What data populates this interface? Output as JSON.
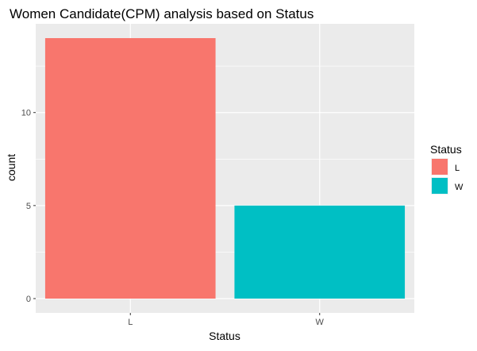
{
  "chart_data": {
    "type": "bar",
    "title": "Women Candidate(CPM) analysis based on Status",
    "xlabel": "Status",
    "ylabel": "count",
    "categories": [
      "L",
      "W"
    ],
    "values": [
      14,
      5
    ],
    "colors": [
      "#F8766D",
      "#00BFC4"
    ],
    "ylim": [
      0,
      14.7
    ],
    "yticks": [
      0,
      5,
      10
    ],
    "grid": true,
    "panel_background": "#EBEBEB",
    "grid_color": "#FFFFFF",
    "legend": {
      "title": "Status",
      "position": "right",
      "entries": [
        {
          "label": "L",
          "color": "#F8766D"
        },
        {
          "label": "W",
          "color": "#00BFC4"
        }
      ]
    }
  }
}
